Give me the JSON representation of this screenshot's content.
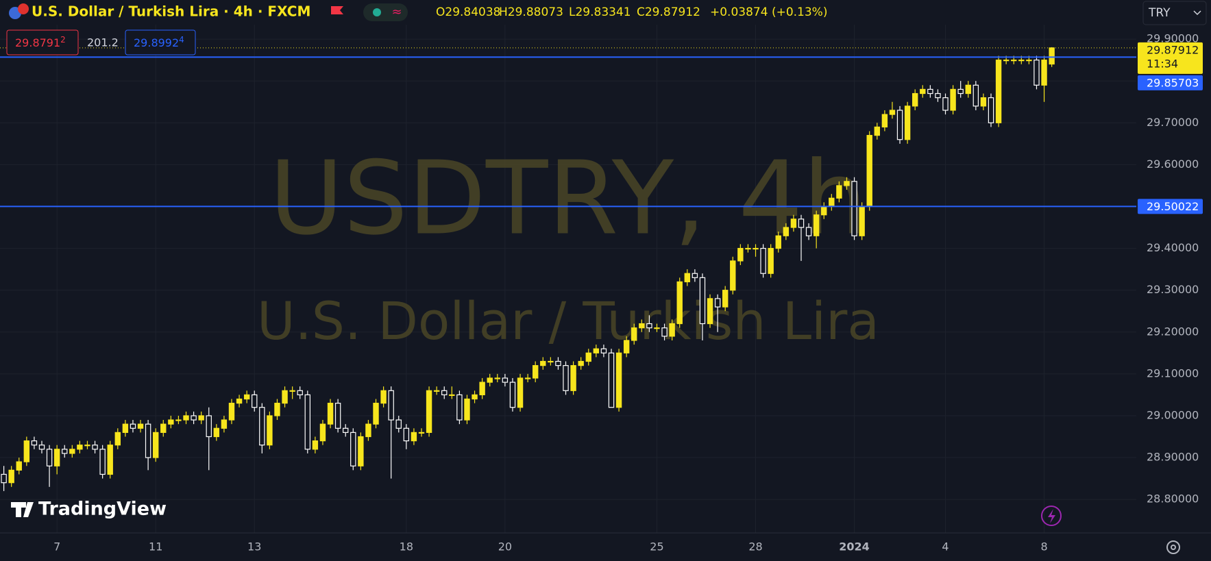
{
  "chart_data": {
    "type": "candlestick",
    "symbol": "U.S. Dollar / Turkish Lira · 4h · FXCM",
    "legend": {
      "o": "O29.84038",
      "h": "H29.88073",
      "l": "L29.83341",
      "c": "C29.87912",
      "change": "+0.03874 (+0.13%)"
    },
    "sell": "29.8791",
    "sell_sup": "2",
    "spread": "201.2",
    "buy": "29.8992",
    "buy_sup": "4",
    "currency": "TRY",
    "watermark": "USDTRY, 4h",
    "watermark_sub": "U.S. Dollar / Turkish Lira",
    "brand": "TradingView",
    "countdown": "11:34",
    "up_color": "#f7e51d",
    "down_color": "#ffffff",
    "line_color": "#2962ff",
    "hlines": [
      29.85703,
      29.50022
    ],
    "ylim": [
      28.72,
      29.91
    ],
    "yticks": [
      {
        "value": 28.8,
        "label": "28.80000"
      },
      {
        "value": 28.9,
        "label": "28.90000"
      },
      {
        "value": 29.0,
        "label": "29.00000"
      },
      {
        "value": 29.1,
        "label": "29.10000"
      },
      {
        "value": 29.2,
        "label": "29.20000"
      },
      {
        "value": 29.3,
        "label": "29.30000"
      },
      {
        "value": 29.4,
        "label": "29.40000"
      },
      {
        "value": 29.5,
        "label": "29.50000"
      },
      {
        "value": 29.6,
        "label": "29.60000"
      },
      {
        "value": 29.7,
        "label": "29.70000"
      },
      {
        "value": 29.8,
        "label": "29.80000"
      },
      {
        "value": 29.9,
        "label": "29.90000"
      }
    ],
    "grid": true,
    "x": [
      null,
      null,
      null,
      null,
      null,
      null,
      null,
      "7",
      null,
      null,
      null,
      null,
      null,
      null,
      null,
      null,
      null,
      null,
      null,
      null,
      "11",
      null,
      null,
      null,
      null,
      null,
      null,
      null,
      null,
      null,
      null,
      null,
      null,
      "13",
      null,
      null,
      null,
      null,
      null,
      null,
      null,
      null,
      null,
      null,
      null,
      null,
      null,
      null,
      null,
      null,
      null,
      null,
      null,
      "18",
      null,
      null,
      null,
      null,
      null,
      null,
      null,
      null,
      null,
      null,
      null,
      null,
      "20",
      null,
      null,
      null,
      null,
      null,
      null,
      null,
      null,
      null,
      null,
      null,
      null,
      null,
      null,
      null,
      null,
      null,
      null,
      null,
      "25",
      null,
      null,
      null,
      null,
      null,
      null,
      null,
      null,
      null,
      null,
      null,
      null,
      "28",
      null,
      null,
      null,
      null,
      null,
      null,
      null,
      null,
      null,
      null,
      null,
      null,
      "2024",
      null,
      null,
      null,
      null,
      null,
      null,
      null,
      null,
      null,
      null,
      null,
      "4",
      null,
      null,
      null,
      null,
      null,
      null,
      null,
      null,
      null,
      null,
      null,
      null,
      "8",
      null
    ],
    "ohlc": [
      [
        28.86,
        28.88,
        28.82,
        28.84
      ],
      [
        28.84,
        28.88,
        28.83,
        28.87
      ],
      [
        28.87,
        28.9,
        28.86,
        28.89
      ],
      [
        28.89,
        28.95,
        28.88,
        28.94
      ],
      [
        28.94,
        28.95,
        28.92,
        28.93
      ],
      [
        28.93,
        28.94,
        28.91,
        28.92
      ],
      [
        28.92,
        28.93,
        28.83,
        28.88
      ],
      [
        28.88,
        28.93,
        28.86,
        28.92
      ],
      [
        28.92,
        28.93,
        28.9,
        28.91
      ],
      [
        28.91,
        28.93,
        28.9,
        28.92
      ],
      [
        28.92,
        28.94,
        28.91,
        28.93
      ],
      [
        28.93,
        28.94,
        28.92,
        28.93
      ],
      [
        28.93,
        28.94,
        28.91,
        28.92
      ],
      [
        28.92,
        28.93,
        28.85,
        28.86
      ],
      [
        28.86,
        28.94,
        28.85,
        28.93
      ],
      [
        28.93,
        28.97,
        28.92,
        28.96
      ],
      [
        28.96,
        28.99,
        28.95,
        28.98
      ],
      [
        28.98,
        28.99,
        28.96,
        28.97
      ],
      [
        28.97,
        28.99,
        28.96,
        28.98
      ],
      [
        28.98,
        28.99,
        28.87,
        28.9
      ],
      [
        28.9,
        28.97,
        28.89,
        28.96
      ],
      [
        28.96,
        28.99,
        28.95,
        28.98
      ],
      [
        28.98,
        29.0,
        28.97,
        28.99
      ],
      [
        28.99,
        29.0,
        28.98,
        28.99
      ],
      [
        28.99,
        29.01,
        28.98,
        29.0
      ],
      [
        29.0,
        29.01,
        28.98,
        28.99
      ],
      [
        28.99,
        29.01,
        28.98,
        29.0
      ],
      [
        29.0,
        29.02,
        28.87,
        28.95
      ],
      [
        28.95,
        28.98,
        28.94,
        28.97
      ],
      [
        28.97,
        29.0,
        28.96,
        28.99
      ],
      [
        28.99,
        29.04,
        28.98,
        29.03
      ],
      [
        29.03,
        29.05,
        29.02,
        29.04
      ],
      [
        29.04,
        29.06,
        29.03,
        29.05
      ],
      [
        29.05,
        29.06,
        29.01,
        29.02
      ],
      [
        29.02,
        29.03,
        28.91,
        28.93
      ],
      [
        28.93,
        29.01,
        28.92,
        29.0
      ],
      [
        29.0,
        29.04,
        28.99,
        29.03
      ],
      [
        29.03,
        29.07,
        29.02,
        29.06
      ],
      [
        29.06,
        29.07,
        29.04,
        29.06
      ],
      [
        29.06,
        29.07,
        29.04,
        29.05
      ],
      [
        29.05,
        29.06,
        28.91,
        28.92
      ],
      [
        28.92,
        28.95,
        28.91,
        28.94
      ],
      [
        28.94,
        28.99,
        28.93,
        28.98
      ],
      [
        28.98,
        29.04,
        28.97,
        29.03
      ],
      [
        29.03,
        29.04,
        28.96,
        28.97
      ],
      [
        28.97,
        28.98,
        28.95,
        28.96
      ],
      [
        28.96,
        28.97,
        28.87,
        28.88
      ],
      [
        28.88,
        28.96,
        28.87,
        28.95
      ],
      [
        28.95,
        28.99,
        28.94,
        28.98
      ],
      [
        28.98,
        29.04,
        28.97,
        29.03
      ],
      [
        29.03,
        29.07,
        29.02,
        29.06
      ],
      [
        29.06,
        29.07,
        28.85,
        28.99
      ],
      [
        28.99,
        29.0,
        28.96,
        28.97
      ],
      [
        28.97,
        28.98,
        28.92,
        28.94
      ],
      [
        28.94,
        28.97,
        28.93,
        28.96
      ],
      [
        28.96,
        28.97,
        28.95,
        28.96
      ],
      [
        28.96,
        29.07,
        28.95,
        29.06
      ],
      [
        29.06,
        29.07,
        29.05,
        29.06
      ],
      [
        29.06,
        29.07,
        29.04,
        29.05
      ],
      [
        29.05,
        29.07,
        29.04,
        29.05
      ],
      [
        29.05,
        29.06,
        28.98,
        28.99
      ],
      [
        28.99,
        29.05,
        28.98,
        29.04
      ],
      [
        29.04,
        29.06,
        29.03,
        29.05
      ],
      [
        29.05,
        29.09,
        29.04,
        29.08
      ],
      [
        29.08,
        29.1,
        29.07,
        29.09
      ],
      [
        29.09,
        29.1,
        29.08,
        29.09
      ],
      [
        29.09,
        29.1,
        29.07,
        29.08
      ],
      [
        29.08,
        29.09,
        29.01,
        29.02
      ],
      [
        29.02,
        29.1,
        29.01,
        29.09
      ],
      [
        29.09,
        29.1,
        29.08,
        29.09
      ],
      [
        29.09,
        29.13,
        29.08,
        29.12
      ],
      [
        29.12,
        29.14,
        29.11,
        29.13
      ],
      [
        29.13,
        29.14,
        29.12,
        29.13
      ],
      [
        29.13,
        29.14,
        29.11,
        29.12
      ],
      [
        29.12,
        29.13,
        29.05,
        29.06
      ],
      [
        29.06,
        29.13,
        29.05,
        29.12
      ],
      [
        29.12,
        29.14,
        29.11,
        29.13
      ],
      [
        29.13,
        29.16,
        29.12,
        29.15
      ],
      [
        29.15,
        29.17,
        29.14,
        29.16
      ],
      [
        29.16,
        29.17,
        29.14,
        29.15
      ],
      [
        29.15,
        29.16,
        29.02,
        29.02
      ],
      [
        29.02,
        29.16,
        29.01,
        29.15
      ],
      [
        29.15,
        29.19,
        29.14,
        29.18
      ],
      [
        29.18,
        29.22,
        29.17,
        29.21
      ],
      [
        29.21,
        29.23,
        29.2,
        29.22
      ],
      [
        29.22,
        29.24,
        29.2,
        29.21
      ],
      [
        29.21,
        29.22,
        29.2,
        29.21
      ],
      [
        29.21,
        29.22,
        29.18,
        29.19
      ],
      [
        29.19,
        29.23,
        29.18,
        29.22
      ],
      [
        29.22,
        29.33,
        29.21,
        29.32
      ],
      [
        29.32,
        29.35,
        29.31,
        29.34
      ],
      [
        29.34,
        29.35,
        29.32,
        29.33
      ],
      [
        29.33,
        29.34,
        29.18,
        29.22
      ],
      [
        29.22,
        29.29,
        29.21,
        29.28
      ],
      [
        29.28,
        29.29,
        29.2,
        29.26
      ],
      [
        29.26,
        29.31,
        29.25,
        29.3
      ],
      [
        29.3,
        29.38,
        29.29,
        29.37
      ],
      [
        29.37,
        29.41,
        29.36,
        29.4
      ],
      [
        29.4,
        29.41,
        29.39,
        29.4
      ],
      [
        29.4,
        29.41,
        29.38,
        29.4
      ],
      [
        29.4,
        29.41,
        29.33,
        29.34
      ],
      [
        29.34,
        29.41,
        29.33,
        29.4
      ],
      [
        29.4,
        29.44,
        29.39,
        29.43
      ],
      [
        29.43,
        29.46,
        29.42,
        29.45
      ],
      [
        29.45,
        29.48,
        29.44,
        29.47
      ],
      [
        29.47,
        29.48,
        29.37,
        29.45
      ],
      [
        29.45,
        29.46,
        29.42,
        29.43
      ],
      [
        29.43,
        29.49,
        29.4,
        29.48
      ],
      [
        29.48,
        29.51,
        29.47,
        29.5
      ],
      [
        29.5,
        29.53,
        29.49,
        29.52
      ],
      [
        29.52,
        29.56,
        29.51,
        29.55
      ],
      [
        29.55,
        29.57,
        29.54,
        29.56
      ],
      [
        29.56,
        29.57,
        29.42,
        29.43
      ],
      [
        29.43,
        29.51,
        29.42,
        29.5
      ],
      [
        29.5,
        29.68,
        29.49,
        29.67
      ],
      [
        29.67,
        29.7,
        29.66,
        29.69
      ],
      [
        29.69,
        29.73,
        29.68,
        29.72
      ],
      [
        29.72,
        29.75,
        29.71,
        29.73
      ],
      [
        29.73,
        29.74,
        29.65,
        29.66
      ],
      [
        29.66,
        29.75,
        29.65,
        29.74
      ],
      [
        29.74,
        29.78,
        29.73,
        29.77
      ],
      [
        29.77,
        29.79,
        29.76,
        29.78
      ],
      [
        29.78,
        29.79,
        29.76,
        29.77
      ],
      [
        29.77,
        29.78,
        29.75,
        29.76
      ],
      [
        29.76,
        29.77,
        29.72,
        29.73
      ],
      [
        29.73,
        29.79,
        29.72,
        29.78
      ],
      [
        29.78,
        29.8,
        29.76,
        29.77
      ],
      [
        29.77,
        29.8,
        29.76,
        29.79
      ],
      [
        29.79,
        29.8,
        29.73,
        29.74
      ],
      [
        29.74,
        29.77,
        29.73,
        29.76
      ],
      [
        29.76,
        29.77,
        29.69,
        29.7
      ],
      [
        29.7,
        29.86,
        29.69,
        29.85
      ],
      [
        29.85,
        29.86,
        29.84,
        29.85
      ],
      [
        29.85,
        29.86,
        29.84,
        29.85
      ],
      [
        29.85,
        29.86,
        29.84,
        29.85
      ],
      [
        29.85,
        29.86,
        29.84,
        29.85
      ],
      [
        29.85,
        29.86,
        29.78,
        29.79
      ],
      [
        29.79,
        29.86,
        29.75,
        29.85
      ],
      [
        29.84038,
        29.88073,
        29.83341,
        29.87912
      ]
    ]
  }
}
